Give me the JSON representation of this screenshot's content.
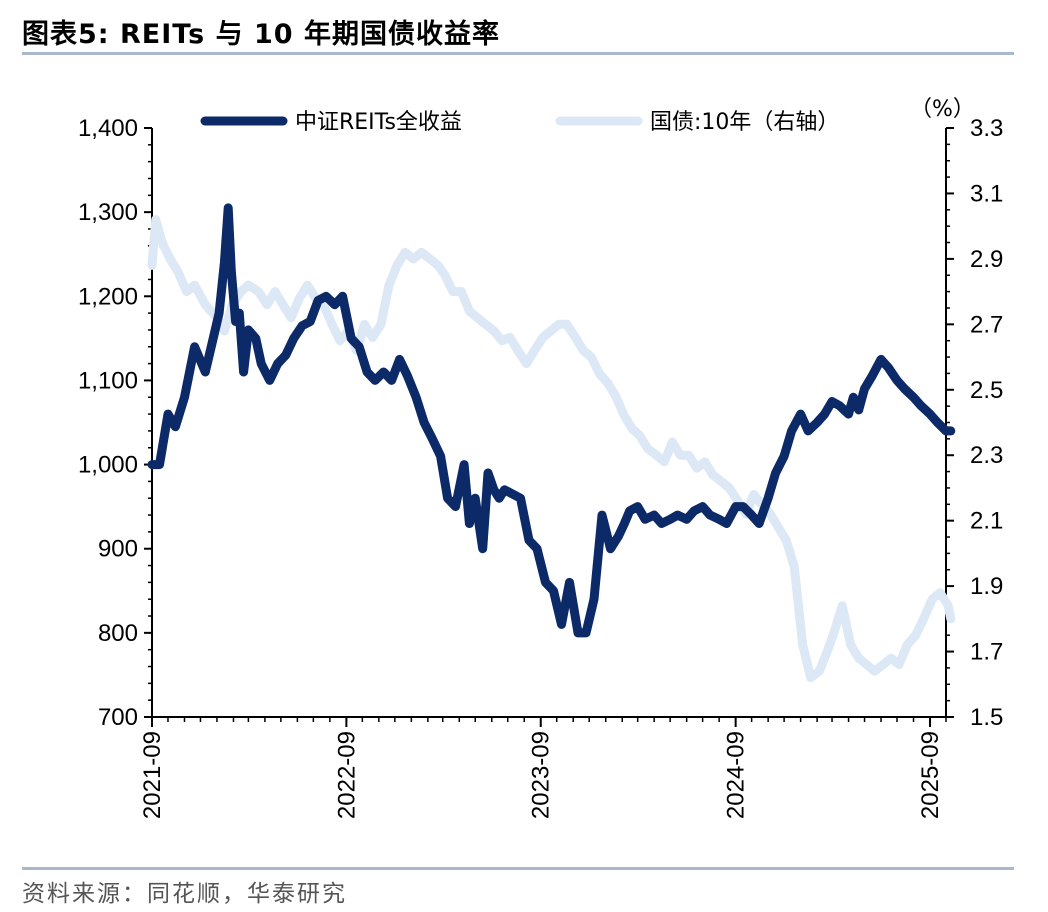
{
  "header": {
    "title": "图表5:   REITs 与 10 年期国债收益率"
  },
  "footer": {
    "source": "资料来源：同花顺，华泰研究"
  },
  "chart_data": {
    "type": "line",
    "y_unit_right": "（%）",
    "x_tick_labels": [
      "2021-09",
      "2022-09",
      "2023-09",
      "2024-09",
      "2025-09"
    ],
    "x_range": [
      "2021-09",
      "2025-10"
    ],
    "y_left": {
      "lim": [
        700,
        1400
      ],
      "ticks": [
        700,
        800,
        900,
        1000,
        1100,
        1200,
        1300,
        1400
      ],
      "tick_labels": [
        "700",
        "800",
        "900",
        "1,000",
        "1,100",
        "1,200",
        "1,300",
        "1,400"
      ]
    },
    "y_right": {
      "lim": [
        1.5,
        3.3
      ],
      "ticks": [
        1.5,
        1.7,
        1.9,
        2.1,
        2.3,
        2.5,
        2.7,
        2.9,
        3.1,
        3.3
      ],
      "tick_labels": [
        "1.5",
        "1.7",
        "1.9",
        "2.1",
        "2.3",
        "2.5",
        "2.7",
        "2.9",
        "3.1",
        "3.3"
      ]
    },
    "legend_position": "top",
    "colors": {
      "reits": "#0c2a68",
      "bond": "#dce8f5",
      "axis": "#000000"
    },
    "series": [
      {
        "name": "中证REITs全收益",
        "axis": "left",
        "x": [
          "2021-09-01",
          "2021-09-15",
          "2021-10-01",
          "2021-10-15",
          "2021-11-01",
          "2021-11-20",
          "2021-12-10",
          "2021-12-25",
          "2022-01-05",
          "2022-01-15",
          "2022-01-22",
          "2022-01-28",
          "2022-02-05",
          "2022-02-12",
          "2022-02-20",
          "2022-03-01",
          "2022-03-15",
          "2022-03-25",
          "2022-04-10",
          "2022-04-25",
          "2022-05-10",
          "2022-05-25",
          "2022-06-10",
          "2022-06-25",
          "2022-07-10",
          "2022-07-25",
          "2022-08-10",
          "2022-08-25",
          "2022-09-10",
          "2022-09-25",
          "2022-10-10",
          "2022-10-25",
          "2022-11-10",
          "2022-11-25",
          "2022-12-10",
          "2022-12-25",
          "2023-01-10",
          "2023-01-25",
          "2023-02-10",
          "2023-02-25",
          "2023-03-10",
          "2023-03-25",
          "2023-04-10",
          "2023-04-20",
          "2023-05-01",
          "2023-05-15",
          "2023-05-25",
          "2023-06-05",
          "2023-06-15",
          "2023-06-25",
          "2023-07-10",
          "2023-07-25",
          "2023-08-10",
          "2023-08-25",
          "2023-09-10",
          "2023-09-25",
          "2023-10-10",
          "2023-10-25",
          "2023-11-10",
          "2023-11-25",
          "2023-12-10",
          "2023-12-25",
          "2024-01-10",
          "2024-01-25",
          "2024-02-05",
          "2024-02-15",
          "2024-03-01",
          "2024-03-15",
          "2024-04-01",
          "2024-04-15",
          "2024-05-01",
          "2024-05-15",
          "2024-06-01",
          "2024-06-15",
          "2024-07-01",
          "2024-07-15",
          "2024-08-01",
          "2024-08-15",
          "2024-09-01",
          "2024-09-15",
          "2024-10-01",
          "2024-10-15",
          "2024-11-01",
          "2024-11-15",
          "2024-12-01",
          "2024-12-15",
          "2025-01-01",
          "2025-01-15",
          "2025-02-01",
          "2025-02-15",
          "2025-03-01",
          "2025-03-15",
          "2025-04-01",
          "2025-04-10",
          "2025-04-20",
          "2025-05-01",
          "2025-05-15",
          "2025-06-01",
          "2025-06-15",
          "2025-07-01",
          "2025-07-15",
          "2025-08-01",
          "2025-08-15",
          "2025-09-01",
          "2025-09-15",
          "2025-10-01",
          "2025-10-10"
        ],
        "values": [
          1000,
          1000,
          1060,
          1045,
          1080,
          1140,
          1110,
          1150,
          1180,
          1240,
          1305,
          1230,
          1170,
          1180,
          1110,
          1160,
          1150,
          1120,
          1100,
          1120,
          1130,
          1150,
          1165,
          1170,
          1195,
          1200,
          1190,
          1200,
          1150,
          1140,
          1110,
          1100,
          1110,
          1100,
          1125,
          1105,
          1080,
          1050,
          1030,
          1010,
          960,
          950,
          1000,
          930,
          960,
          900,
          990,
          970,
          960,
          970,
          965,
          960,
          910,
          900,
          860,
          850,
          810,
          860,
          800,
          800,
          840,
          940,
          900,
          915,
          930,
          945,
          950,
          935,
          940,
          930,
          935,
          940,
          935,
          945,
          950,
          940,
          935,
          930,
          950,
          950,
          940,
          930,
          960,
          990,
          1010,
          1040,
          1060,
          1040,
          1050,
          1060,
          1075,
          1070,
          1060,
          1080,
          1065,
          1090,
          1105,
          1125,
          1115,
          1100,
          1090,
          1080,
          1070,
          1060,
          1050,
          1040,
          1040
        ]
      },
      {
        "name": "国债:10年（右轴）",
        "axis": "right",
        "x": [
          "2021-09-01",
          "2021-09-08",
          "2021-09-20",
          "2021-10-05",
          "2021-10-20",
          "2021-11-05",
          "2021-11-20",
          "2021-12-10",
          "2022-01-01",
          "2022-01-15",
          "2022-01-30",
          "2022-02-15",
          "2022-03-01",
          "2022-03-20",
          "2022-04-05",
          "2022-04-20",
          "2022-05-05",
          "2022-05-20",
          "2022-06-05",
          "2022-06-20",
          "2022-07-05",
          "2022-07-20",
          "2022-08-05",
          "2022-08-20",
          "2022-09-05",
          "2022-09-20",
          "2022-10-05",
          "2022-10-20",
          "2022-11-05",
          "2022-11-20",
          "2022-12-05",
          "2022-12-20",
          "2023-01-05",
          "2023-01-20",
          "2023-02-05",
          "2023-02-20",
          "2023-03-05",
          "2023-03-20",
          "2023-04-05",
          "2023-04-20",
          "2023-05-05",
          "2023-05-20",
          "2023-06-05",
          "2023-06-20",
          "2023-07-05",
          "2023-07-20",
          "2023-08-05",
          "2023-08-20",
          "2023-09-05",
          "2023-09-20",
          "2023-10-05",
          "2023-10-20",
          "2023-11-05",
          "2023-11-20",
          "2023-12-05",
          "2023-12-20",
          "2024-01-05",
          "2024-01-20",
          "2024-02-05",
          "2024-02-20",
          "2024-03-05",
          "2024-03-20",
          "2024-04-05",
          "2024-04-20",
          "2024-05-05",
          "2024-05-20",
          "2024-06-05",
          "2024-06-20",
          "2024-07-05",
          "2024-07-20",
          "2024-08-05",
          "2024-08-20",
          "2024-09-05",
          "2024-09-20",
          "2024-10-05",
          "2024-10-20",
          "2024-11-05",
          "2024-11-20",
          "2024-12-05",
          "2024-12-20",
          "2025-01-05",
          "2025-01-20",
          "2025-02-05",
          "2025-02-20",
          "2025-03-05",
          "2025-03-20",
          "2025-04-05",
          "2025-04-20",
          "2025-05-05",
          "2025-05-20",
          "2025-06-05",
          "2025-06-20",
          "2025-07-05",
          "2025-07-20",
          "2025-08-05",
          "2025-08-20",
          "2025-09-05",
          "2025-09-20",
          "2025-10-05",
          "2025-10-10"
        ],
        "values": [
          2.88,
          3.02,
          2.95,
          2.9,
          2.86,
          2.8,
          2.82,
          2.76,
          2.72,
          2.68,
          2.76,
          2.8,
          2.82,
          2.8,
          2.76,
          2.8,
          2.76,
          2.72,
          2.78,
          2.82,
          2.78,
          2.76,
          2.7,
          2.65,
          2.68,
          2.62,
          2.7,
          2.66,
          2.7,
          2.82,
          2.88,
          2.92,
          2.9,
          2.92,
          2.9,
          2.88,
          2.85,
          2.8,
          2.8,
          2.74,
          2.72,
          2.7,
          2.68,
          2.65,
          2.66,
          2.62,
          2.58,
          2.62,
          2.66,
          2.68,
          2.7,
          2.7,
          2.66,
          2.62,
          2.6,
          2.55,
          2.52,
          2.48,
          2.42,
          2.38,
          2.36,
          2.32,
          2.3,
          2.28,
          2.34,
          2.3,
          2.3,
          2.26,
          2.28,
          2.24,
          2.22,
          2.2,
          2.16,
          2.12,
          2.18,
          2.15,
          2.12,
          2.08,
          2.04,
          1.96,
          1.72,
          1.62,
          1.64,
          1.7,
          1.76,
          1.84,
          1.72,
          1.68,
          1.66,
          1.64,
          1.66,
          1.68,
          1.66,
          1.72,
          1.75,
          1.8,
          1.86,
          1.88,
          1.84,
          1.8
        ]
      }
    ]
  }
}
